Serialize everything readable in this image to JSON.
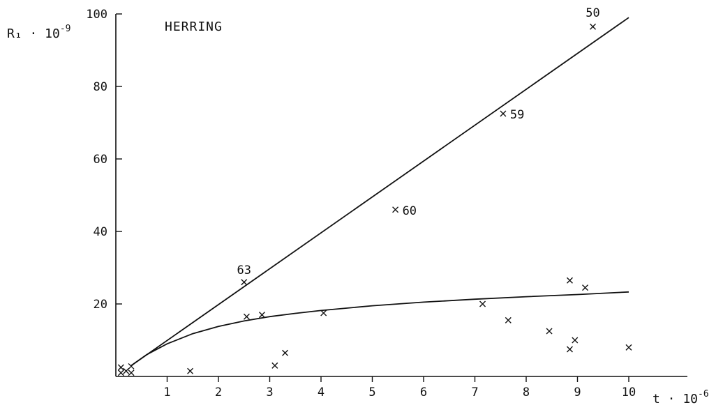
{
  "chart_data": {
    "type": "scatter",
    "title": "HERRING",
    "xlabel": "t · 10",
    "xlabel_exp": "-6",
    "ylabel": "R₁ · 10",
    "ylabel_exp": "-9",
    "xlim": [
      0,
      11
    ],
    "ylim": [
      0,
      100
    ],
    "x_ticks": [
      1,
      2,
      3,
      4,
      5,
      6,
      7,
      8,
      9,
      10
    ],
    "y_ticks": [
      20,
      40,
      60,
      80,
      100
    ],
    "grid": false,
    "points": [
      {
        "x": 0.1,
        "y": 2.5
      },
      {
        "x": 0.1,
        "y": 1.0
      },
      {
        "x": 0.2,
        "y": 1.5
      },
      {
        "x": 0.3,
        "y": 2.8
      },
      {
        "x": 0.3,
        "y": 1.0
      },
      {
        "x": 1.45,
        "y": 1.5
      },
      {
        "x": 2.5,
        "y": 26.0,
        "label": "63"
      },
      {
        "x": 2.55,
        "y": 16.5
      },
      {
        "x": 2.85,
        "y": 17.0
      },
      {
        "x": 3.1,
        "y": 3.0
      },
      {
        "x": 3.3,
        "y": 6.5
      },
      {
        "x": 4.05,
        "y": 17.5
      },
      {
        "x": 5.45,
        "y": 46.0,
        "label": "60"
      },
      {
        "x": 7.15,
        "y": 20.0
      },
      {
        "x": 7.55,
        "y": 72.5,
        "label": "59"
      },
      {
        "x": 7.65,
        "y": 15.5
      },
      {
        "x": 8.45,
        "y": 12.5
      },
      {
        "x": 8.85,
        "y": 26.5
      },
      {
        "x": 8.85,
        "y": 7.5
      },
      {
        "x": 8.95,
        "y": 10.0
      },
      {
        "x": 9.15,
        "y": 24.5
      },
      {
        "x": 9.3,
        "y": 96.5,
        "label": "50"
      },
      {
        "x": 10.0,
        "y": 8.0
      }
    ],
    "lines": [
      {
        "type": "straight",
        "x": [
          0.3,
          10.0
        ],
        "y": [
          3.0,
          99.0
        ]
      },
      {
        "type": "curve",
        "x": [
          0.3,
          0.6,
          1.0,
          1.5,
          2.0,
          2.5,
          3.0,
          3.5,
          4.0,
          5.0,
          6.0,
          7.0,
          8.0,
          9.0,
          10.0
        ],
        "y": [
          3.0,
          6.0,
          9.0,
          11.8,
          13.8,
          15.3,
          16.5,
          17.4,
          18.2,
          19.5,
          20.5,
          21.3,
          22.0,
          22.6,
          23.3
        ]
      }
    ]
  }
}
